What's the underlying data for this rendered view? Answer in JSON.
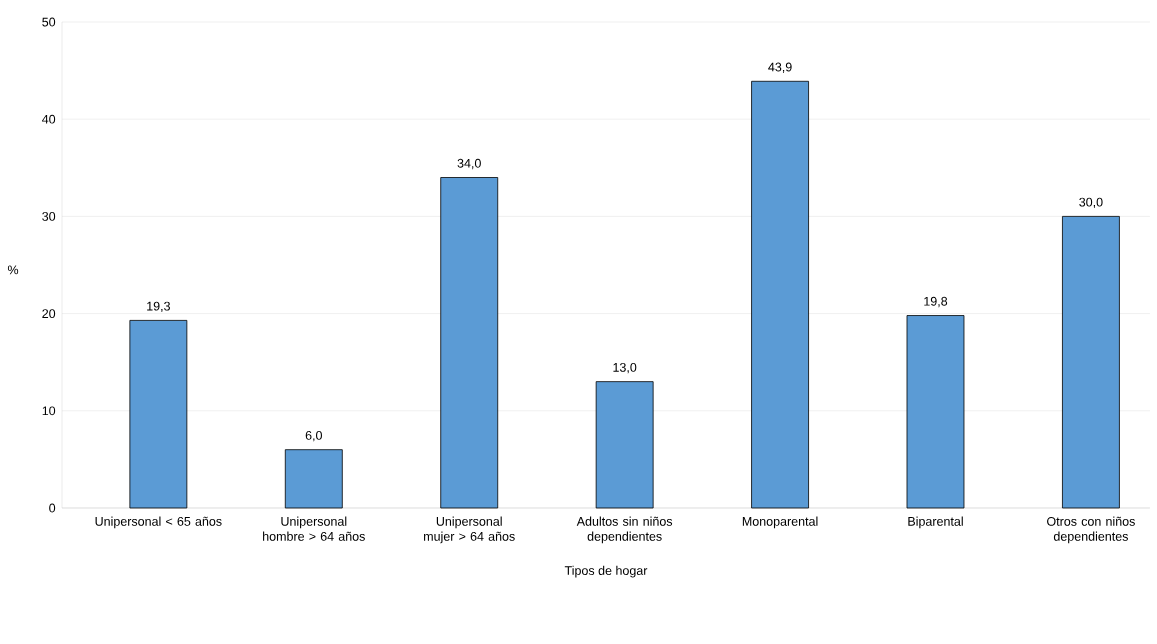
{
  "chart_data": {
    "type": "bar",
    "xlabel": "Tipos de hogar",
    "ylabel": "%",
    "categories": [
      "Unipersonal < 65 años",
      "Unipersonal hombre > 64 años",
      "Unipersonal mujer > 64 años",
      "Adultos sin niños dependientes",
      "Monoparental",
      "Biparental",
      "Otros con niños dependientes"
    ],
    "values": [
      19.3,
      6.0,
      34.0,
      13.0,
      43.9,
      19.8,
      30.0
    ],
    "value_labels": [
      "19,3",
      "6,0",
      "34,0",
      "13,0",
      "43,9",
      "19,8",
      "30,0"
    ],
    "color": "#5b9bd5",
    "ylim": [
      0,
      50
    ],
    "yticks": [
      0,
      10,
      20,
      30,
      40,
      50
    ],
    "grid": "y"
  }
}
